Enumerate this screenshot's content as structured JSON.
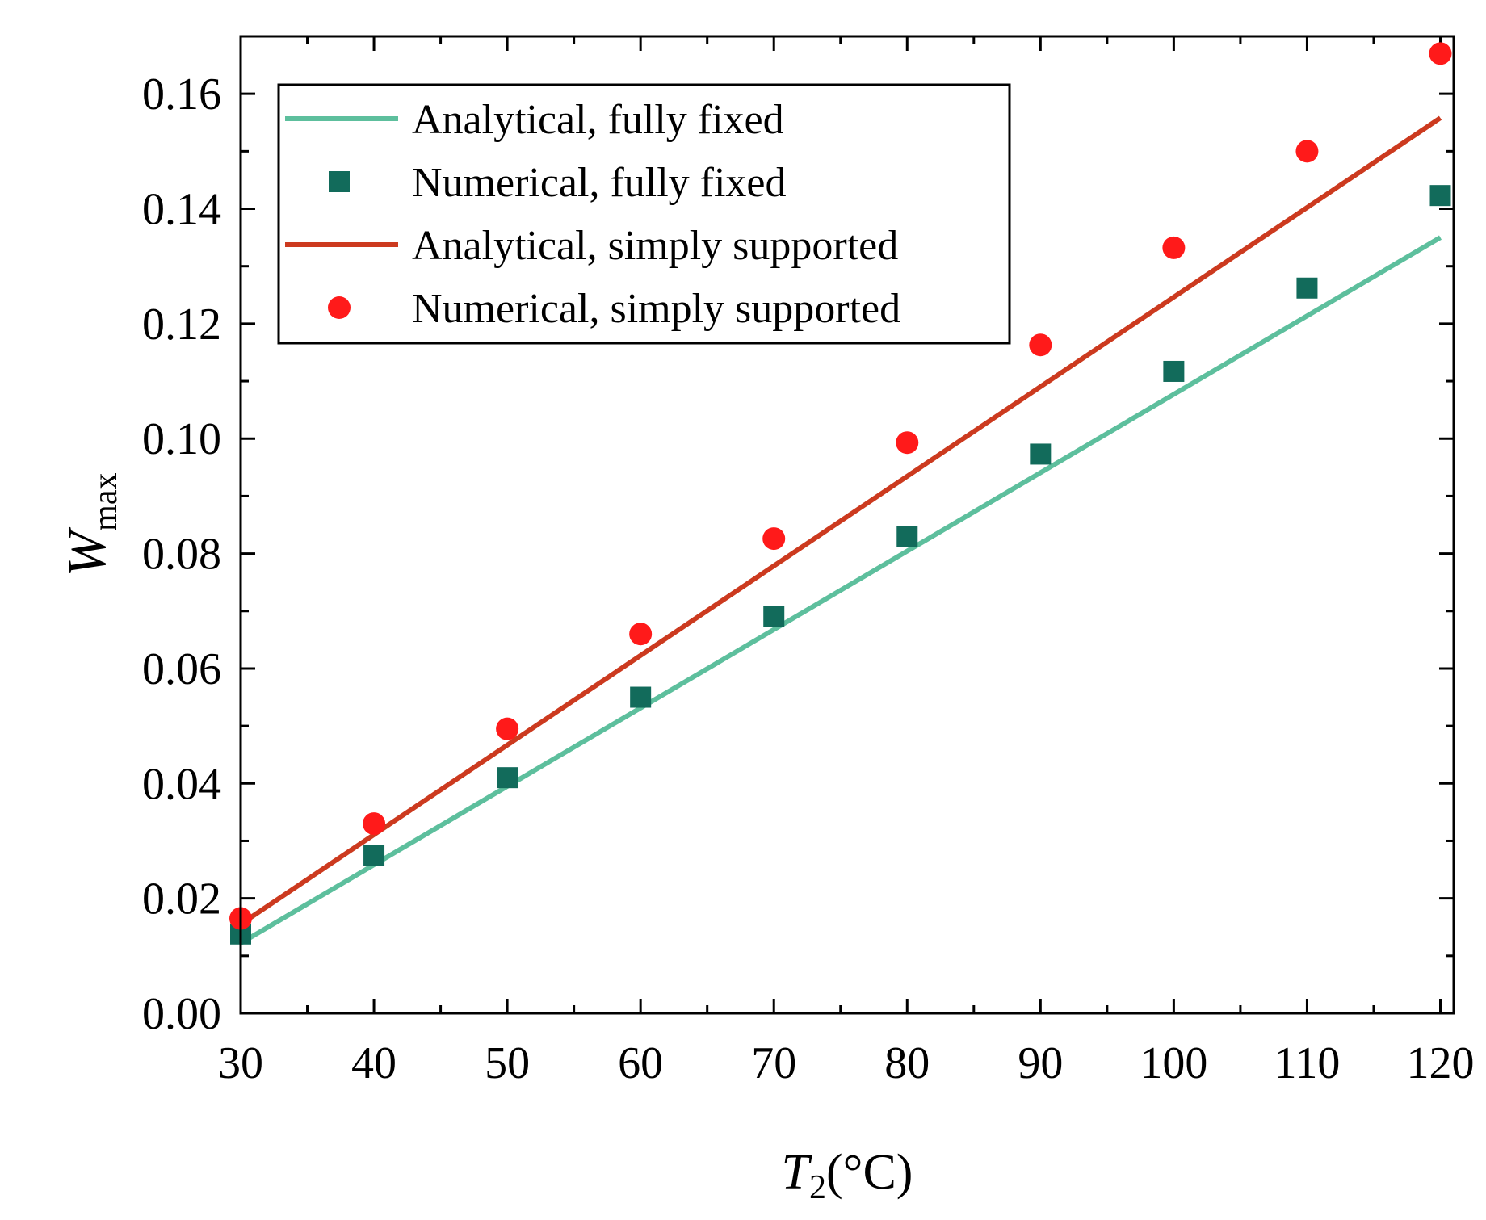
{
  "chart_data": {
    "type": "scatter",
    "xlabel_main": "T",
    "xlabel_sub": "2",
    "xlabel_unit": "(°C)",
    "ylabel_main": "W",
    "ylabel_sub": "max",
    "xlim": [
      30,
      121
    ],
    "ylim": [
      0,
      0.17
    ],
    "xticks": [
      30,
      40,
      50,
      60,
      70,
      80,
      90,
      100,
      110,
      120
    ],
    "xtick_labels": [
      "30",
      "40",
      "50",
      "60",
      "70",
      "80",
      "90",
      "100",
      "110",
      "120"
    ],
    "yticks": [
      0,
      0.02,
      0.04,
      0.06,
      0.08,
      0.1,
      0.12,
      0.14,
      0.16
    ],
    "ytick_labels": [
      "0.00",
      "0.02",
      "0.04",
      "0.06",
      "0.08",
      "0.10",
      "0.12",
      "0.14",
      "0.16"
    ],
    "legend_position": "top-left",
    "series": [
      {
        "name": "Analytical, fully fixed",
        "kind": "line",
        "color": "#5dbf9d",
        "x": [
          30,
          120
        ],
        "y": [
          0.0122,
          0.135
        ]
      },
      {
        "name": "Numerical, fully fixed",
        "kind": "square",
        "color": "#126b5b",
        "x": [
          30,
          40,
          50,
          60,
          70,
          80,
          90,
          100,
          110,
          120
        ],
        "y": [
          0.0138,
          0.0275,
          0.041,
          0.055,
          0.069,
          0.083,
          0.0973,
          0.1117,
          0.1262,
          0.1423
        ]
      },
      {
        "name": "Analytical, simply supported",
        "kind": "line",
        "color": "#cc3a1f",
        "x": [
          30,
          120
        ],
        "y": [
          0.0155,
          0.1558
        ]
      },
      {
        "name": "Numerical, simply supported",
        "kind": "circle",
        "color": "#ff1a1a",
        "x": [
          30,
          40,
          50,
          60,
          70,
          80,
          90,
          100,
          110,
          120
        ],
        "y": [
          0.0165,
          0.033,
          0.0495,
          0.066,
          0.0826,
          0.0993,
          0.1163,
          0.1332,
          0.15,
          0.167
        ]
      }
    ]
  }
}
